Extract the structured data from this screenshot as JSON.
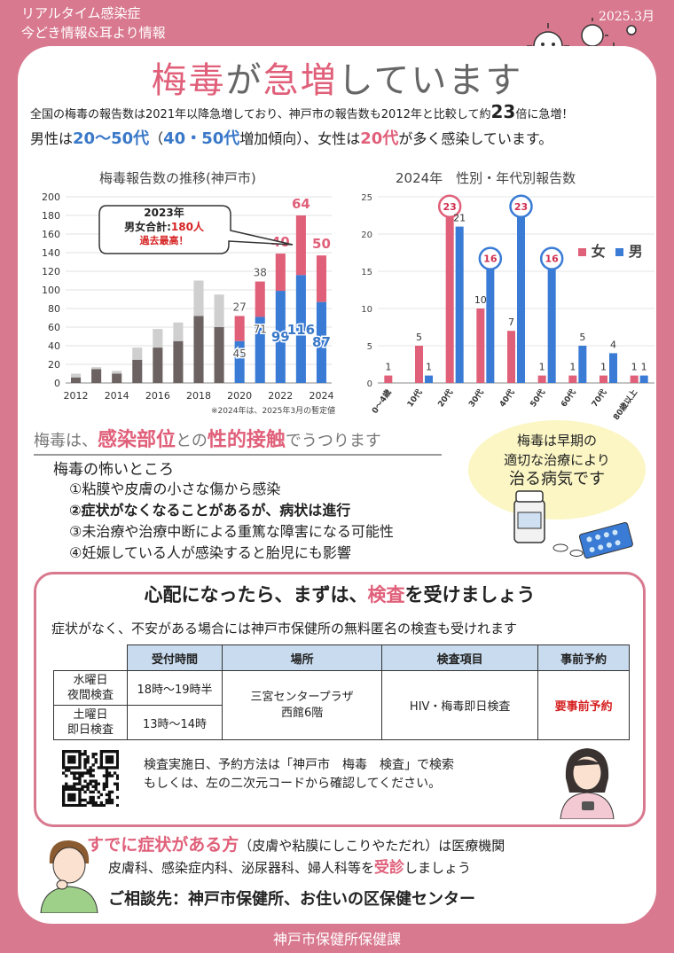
{
  "header": {
    "line1": "リアルタイム感染症",
    "line2": "今どき情報&耳より情報",
    "date": "2025.3月"
  },
  "title": {
    "part1": "梅毒",
    "part2": "が",
    "part3": "急増",
    "part4": "しています"
  },
  "lead": {
    "line1_a": "全国の梅毒の報告数は2021年以降急増しており、神戸市の報告数も2012年と比較して約",
    "line1_num": "23",
    "line1_b": "倍に急増！",
    "line2_a": "男性は",
    "line2_age": "20～50代",
    "line2_b": "（",
    "line2_c": "40・50代",
    "line2_d": "増加傾向）、女性は",
    "line2_e": "20代",
    "line2_f": "が多く感染しています。"
  },
  "chart_left_title": "梅毒報告数の推移(神戸市)",
  "chart_right_title": "2024年　性別・年代別報告数",
  "chart_left_note": "※2024年は、2025年3月の暫定値",
  "chart_left_callout": {
    "l1": "2023年",
    "l2a": "男女合計:",
    "l2b": "180人",
    "l3": "過去最高！"
  },
  "chart_right_legend": {
    "female": "女",
    "male": "男"
  },
  "chart_data": [
    {
      "type": "bar",
      "title": "梅毒報告数の推移(神戸市)",
      "x": [
        2012,
        2013,
        2014,
        2015,
        2016,
        2017,
        2018,
        2019,
        2020,
        2021,
        2022,
        2023,
        2024
      ],
      "xticks": [
        "2012",
        "2014",
        "2016",
        "2018",
        "2020",
        "2022",
        "2024"
      ],
      "ylim": [
        0,
        200
      ],
      "yticks": [
        0,
        20,
        40,
        60,
        80,
        100,
        120,
        140,
        160,
        180,
        200
      ],
      "series": [
        {
          "name": "男",
          "values": [
            6,
            15,
            10,
            25,
            38,
            45,
            72,
            60,
            45,
            71,
            99,
            116,
            87
          ]
        },
        {
          "name": "女",
          "values": [
            4,
            2,
            3,
            13,
            20,
            20,
            38,
            35,
            27,
            38,
            40,
            64,
            50
          ]
        }
      ],
      "labels": {
        "2020": [
          45,
          27
        ],
        "2021": [
          71,
          38
        ],
        "2022": [
          99,
          40
        ],
        "2023": [
          116,
          64
        ],
        "2024": [
          87,
          50
        ]
      }
    },
    {
      "type": "bar",
      "title": "2024年　性別・年代別報告数",
      "categories": [
        "0～4歳",
        "10代",
        "20代",
        "30代",
        "40代",
        "50代",
        "60代",
        "70代",
        "80歳以上"
      ],
      "ylim": [
        0,
        25
      ],
      "yticks": [
        0,
        5,
        10,
        15,
        20,
        25
      ],
      "series": [
        {
          "name": "女",
          "values": [
            1,
            5,
            23,
            10,
            7,
            1,
            1,
            1,
            1
          ]
        },
        {
          "name": "男",
          "values": [
            0,
            1,
            21,
            16,
            23,
            16,
            5,
            4,
            1
          ]
        }
      ]
    }
  ],
  "section2": {
    "a": "梅毒は、",
    "b": "感染部位",
    "c": "との",
    "d": "性的接触",
    "e": "でうつります"
  },
  "risks": {
    "title": "梅毒の怖いところ",
    "items": [
      "①粘膜や皮膚の小さな傷から感染",
      "②症状がなくなることがあるが、病状は進行",
      "③未治療や治療中断による重篤な障害になる可能性",
      "④妊娠している人が感染すると胎児にも影響"
    ]
  },
  "bubble": {
    "l1": "梅毒は早期の",
    "l2": "適切な治療により",
    "l3": "治る病気です"
  },
  "check": {
    "title_a": "心配になったら、まずは、",
    "title_b": "検査",
    "title_c": "を受けましょう",
    "sub": "症状がなく、不安がある場合には神戸市保健所の無料匿名の検査も受けれます",
    "headers": [
      "",
      "受付時間",
      "場所",
      "検査項目",
      "事前予約"
    ],
    "row1_day": "水曜日\n夜間検査",
    "row1_time": "18時～19時半",
    "row2_day": "土曜日\n即日検査",
    "row2_time": "13時～14時",
    "place": "三宮センタープラザ\n西館6階",
    "item": "HIV・梅毒即日検査",
    "reserve": "要事前予約",
    "note1": "検査実施日、予約方法は「神戸市　梅毒　検査」で検索",
    "note2": "もしくは、左の二次元コードから確認してください。"
  },
  "bottom": {
    "l1a": "すでに症状がある方",
    "l1b": "（皮膚や粘膜にしこりやただれ）は医療機関",
    "l2a": "皮膚科、感染症内科、泌尿器科、婦人科等を",
    "l2b": "受診",
    "l2c": "しましょう",
    "l3": "ご相談先：神戸市保健所、お住いの区保健センター"
  },
  "footer": "神戸市保健所保健課",
  "colors": {
    "background": "#d9798f",
    "pink": "#e0607a",
    "blue": "#3a78c8",
    "dark": "#6b6261",
    "light": "#d0cfcf",
    "female": "#e0607a",
    "male": "#3a7bd5"
  }
}
